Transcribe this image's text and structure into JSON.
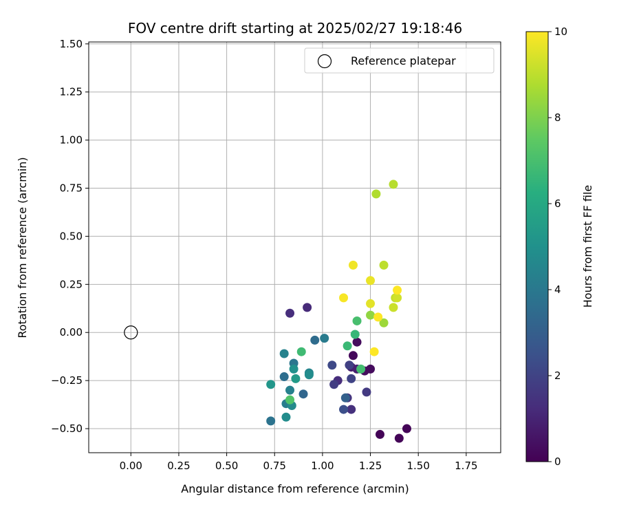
{
  "chart_data": {
    "type": "scatter",
    "title": "FOV centre drift starting at 2025/02/27 19:18:46",
    "xlabel": "Angular distance from reference (arcmin)",
    "ylabel": "Rotation from reference (arcmin)",
    "xlim": [
      -0.22,
      1.93
    ],
    "ylim": [
      -0.625,
      1.51
    ],
    "xticks": [
      "0.00",
      "0.25",
      "0.50",
      "0.75",
      "1.00",
      "1.25",
      "1.50",
      "1.75"
    ],
    "yticks": [
      "−0.50",
      "−0.25",
      "0.00",
      "0.25",
      "0.50",
      "0.75",
      "1.00",
      "1.25",
      "1.50"
    ],
    "grid": true,
    "legend": {
      "placement": "top-right",
      "label": "Reference platepar"
    },
    "reference_point": {
      "x": 0.0,
      "y": 0.0
    },
    "colorbar": {
      "label": "Hours from first FF file",
      "range": [
        0,
        10
      ],
      "ticks": [
        "0",
        "2",
        "4",
        "6",
        "8",
        "10"
      ],
      "colormap": "viridis"
    },
    "points": [
      {
        "x": 1.3,
        "y": -0.53,
        "h": 0.1
      },
      {
        "x": 1.4,
        "y": -0.55,
        "h": 0.1
      },
      {
        "x": 1.44,
        "y": -0.5,
        "h": 0.1
      },
      {
        "x": 1.16,
        "y": -0.12,
        "h": 0.2
      },
      {
        "x": 1.18,
        "y": -0.05,
        "h": 0.3
      },
      {
        "x": 1.22,
        "y": -0.2,
        "h": 0.3
      },
      {
        "x": 1.25,
        "y": -0.19,
        "h": 0.3
      },
      {
        "x": 1.15,
        "y": -0.18,
        "h": 0.8
      },
      {
        "x": 1.18,
        "y": -0.19,
        "h": 0.9
      },
      {
        "x": 0.92,
        "y": 0.13,
        "h": 1.2
      },
      {
        "x": 0.83,
        "y": 0.1,
        "h": 1.3
      },
      {
        "x": 1.08,
        "y": -0.25,
        "h": 1.3
      },
      {
        "x": 1.15,
        "y": -0.4,
        "h": 1.4
      },
      {
        "x": 1.13,
        "y": -0.34,
        "h": 1.5
      },
      {
        "x": 1.23,
        "y": -0.31,
        "h": 1.7
      },
      {
        "x": 1.06,
        "y": -0.27,
        "h": 1.8
      },
      {
        "x": 1.14,
        "y": -0.17,
        "h": 1.9
      },
      {
        "x": 1.15,
        "y": -0.24,
        "h": 2.0
      },
      {
        "x": 1.05,
        "y": -0.17,
        "h": 2.2
      },
      {
        "x": 1.11,
        "y": -0.4,
        "h": 2.4
      },
      {
        "x": 1.12,
        "y": -0.34,
        "h": 3.1
      },
      {
        "x": 0.9,
        "y": -0.32,
        "h": 3.3
      },
      {
        "x": 0.96,
        "y": -0.04,
        "h": 3.5
      },
      {
        "x": 0.8,
        "y": -0.23,
        "h": 3.6
      },
      {
        "x": 0.73,
        "y": -0.46,
        "h": 3.8
      },
      {
        "x": 0.85,
        "y": -0.16,
        "h": 3.9
      },
      {
        "x": 1.01,
        "y": -0.03,
        "h": 4.1
      },
      {
        "x": 0.81,
        "y": -0.37,
        "h": 4.2
      },
      {
        "x": 0.83,
        "y": -0.3,
        "h": 4.3
      },
      {
        "x": 0.8,
        "y": -0.11,
        "h": 4.4
      },
      {
        "x": 0.93,
        "y": -0.21,
        "h": 4.5
      },
      {
        "x": 0.84,
        "y": -0.38,
        "h": 4.7
      },
      {
        "x": 0.81,
        "y": -0.44,
        "h": 4.8
      },
      {
        "x": 0.93,
        "y": -0.22,
        "h": 4.8
      },
      {
        "x": 0.85,
        "y": -0.19,
        "h": 5.0
      },
      {
        "x": 0.73,
        "y": -0.27,
        "h": 5.2
      },
      {
        "x": 0.86,
        "y": -0.24,
        "h": 5.4
      },
      {
        "x": 1.17,
        "y": -0.01,
        "h": 6.6
      },
      {
        "x": 1.13,
        "y": -0.07,
        "h": 6.7
      },
      {
        "x": 0.89,
        "y": -0.1,
        "h": 6.8
      },
      {
        "x": 1.2,
        "y": -0.19,
        "h": 6.9
      },
      {
        "x": 1.18,
        "y": 0.06,
        "h": 7.0
      },
      {
        "x": 0.83,
        "y": -0.35,
        "h": 7.2
      },
      {
        "x": 1.25,
        "y": 0.09,
        "h": 8.3
      },
      {
        "x": 1.32,
        "y": 0.05,
        "h": 8.5
      },
      {
        "x": 1.28,
        "y": 0.72,
        "h": 8.8
      },
      {
        "x": 1.37,
        "y": 0.77,
        "h": 8.9
      },
      {
        "x": 1.32,
        "y": 0.35,
        "h": 9.0
      },
      {
        "x": 1.38,
        "y": 0.18,
        "h": 9.1
      },
      {
        "x": 1.37,
        "y": 0.13,
        "h": 9.2
      },
      {
        "x": 1.39,
        "y": 0.18,
        "h": 9.3
      },
      {
        "x": 1.25,
        "y": 0.15,
        "h": 9.6
      },
      {
        "x": 1.25,
        "y": 0.27,
        "h": 9.7
      },
      {
        "x": 1.16,
        "y": 0.35,
        "h": 9.8
      },
      {
        "x": 1.11,
        "y": 0.18,
        "h": 9.9
      },
      {
        "x": 1.29,
        "y": 0.08,
        "h": 10.0
      },
      {
        "x": 1.39,
        "y": 0.22,
        "h": 10.0
      },
      {
        "x": 1.27,
        "y": -0.1,
        "h": 10.0
      }
    ]
  }
}
